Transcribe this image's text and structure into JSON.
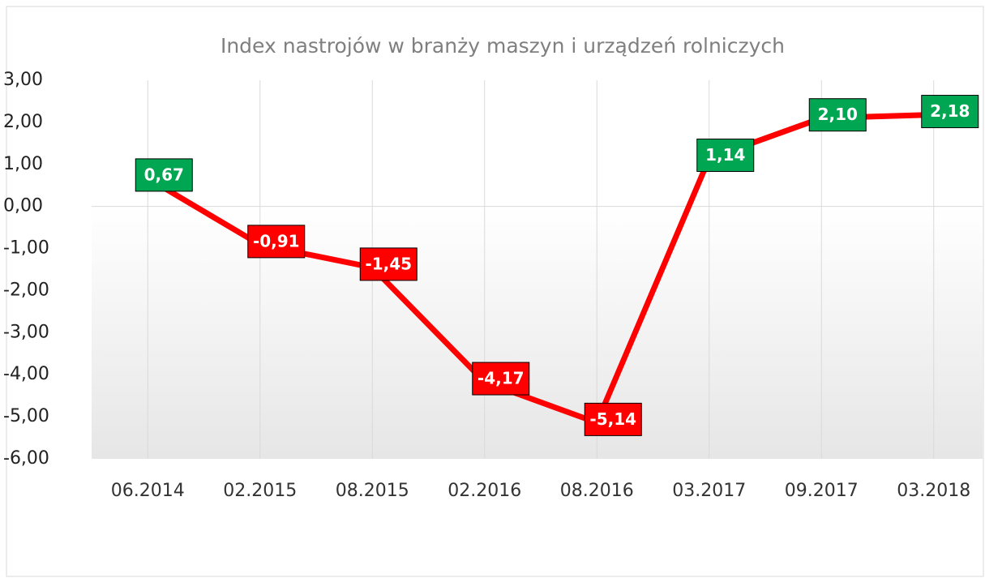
{
  "chart_data": {
    "type": "line",
    "title": "Index nastrojów w branży maszyn i urządzeń rolniczych",
    "categories": [
      "06.2014",
      "02.2015",
      "08.2015",
      "02.2016",
      "08.2016",
      "03.2017",
      "09.2017",
      "03.2018"
    ],
    "series": [
      {
        "name": "Index",
        "color": "#ff0000",
        "values": [
          0.67,
          -0.91,
          -1.45,
          -4.17,
          -5.14,
          1.14,
          2.1,
          2.18
        ],
        "value_labels": [
          "0,67",
          "-0,91",
          "-1,45",
          "-4,17",
          "-5,14",
          "1,14",
          "2,10",
          "2,18"
        ]
      }
    ],
    "label_colors": {
      "positive": "#00a651",
      "negative": "#ff0000"
    },
    "ylim": [
      -6,
      3
    ],
    "yticks": [
      {
        "value": -6,
        "label": "-6,00"
      },
      {
        "value": -5,
        "label": "-5,00"
      },
      {
        "value": -4,
        "label": "-4,00"
      },
      {
        "value": -3,
        "label": "-3,00"
      },
      {
        "value": -2,
        "label": "-2,00"
      },
      {
        "value": -1,
        "label": "-1,00"
      },
      {
        "value": 0,
        "label": "0,00"
      },
      {
        "value": 1,
        "label": "1,00"
      },
      {
        "value": 2,
        "label": "2,00"
      },
      {
        "value": 3,
        "label": "3,00"
      }
    ],
    "grid": true
  }
}
